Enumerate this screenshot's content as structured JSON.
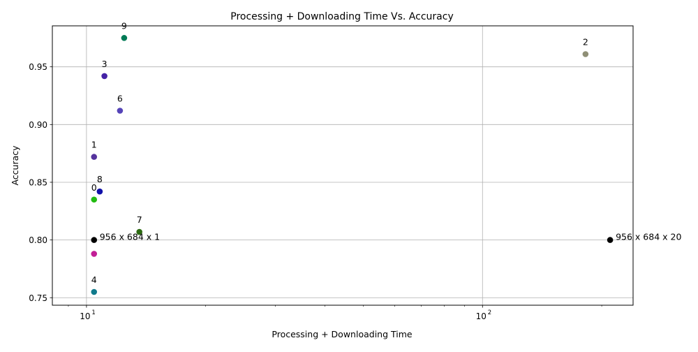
{
  "chart_data": {
    "type": "scatter",
    "title": "Processing + Downloading Time Vs. Accuracy",
    "xlabel": "Processing + Downloading Time",
    "ylabel": "Accuracy",
    "xscale": "log",
    "xlim": [
      8.2,
      240
    ],
    "ylim": [
      0.7435,
      0.9855
    ],
    "grid": true,
    "x_ticks": [
      {
        "value": 10,
        "base": "10",
        "exp": "1"
      },
      {
        "value": 100,
        "base": "10",
        "exp": "2"
      }
    ],
    "y_ticks": [
      0.75,
      0.8,
      0.85,
      0.9,
      0.95
    ],
    "y_tick_labels": [
      "0.75",
      "0.80",
      "0.85",
      "0.90",
      "0.95"
    ],
    "points": [
      {
        "label": "0",
        "x": 10.45,
        "y": 0.835,
        "color": "#22bb11",
        "label_pos": "above"
      },
      {
        "label": "1",
        "x": 10.45,
        "y": 0.872,
        "color": "#55339d",
        "label_pos": "above"
      },
      {
        "label": "2",
        "x": 182,
        "y": 0.961,
        "color": "#8f8f76",
        "label_pos": "above"
      },
      {
        "label": "3",
        "x": 11.1,
        "y": 0.942,
        "color": "#4422a6",
        "label_pos": "above"
      },
      {
        "label": "4",
        "x": 10.45,
        "y": 0.755,
        "color": "#107a8c",
        "label_pos": "above"
      },
      {
        "label": "6",
        "x": 12.15,
        "y": 0.912,
        "color": "#5544b8",
        "label_pos": "above"
      },
      {
        "label": "7",
        "x": 13.6,
        "y": 0.807,
        "color": "#2d6b12",
        "label_pos": "above"
      },
      {
        "label": "8",
        "x": 10.8,
        "y": 0.842,
        "color": "#1111aa",
        "label_pos": "above"
      },
      {
        "label": "9",
        "x": 12.45,
        "y": 0.975,
        "color": "#007a55",
        "label_pos": "above"
      },
      {
        "label": "",
        "x": 10.45,
        "y": 0.788,
        "color": "#c21e96",
        "label_pos": "none"
      },
      {
        "label": "956 x 684 x 1",
        "x": 10.45,
        "y": 0.8,
        "color": "#000000",
        "label_pos": "right"
      },
      {
        "label": "956 x 684 x 20",
        "x": 210,
        "y": 0.8,
        "color": "#000000",
        "label_pos": "right"
      }
    ]
  }
}
